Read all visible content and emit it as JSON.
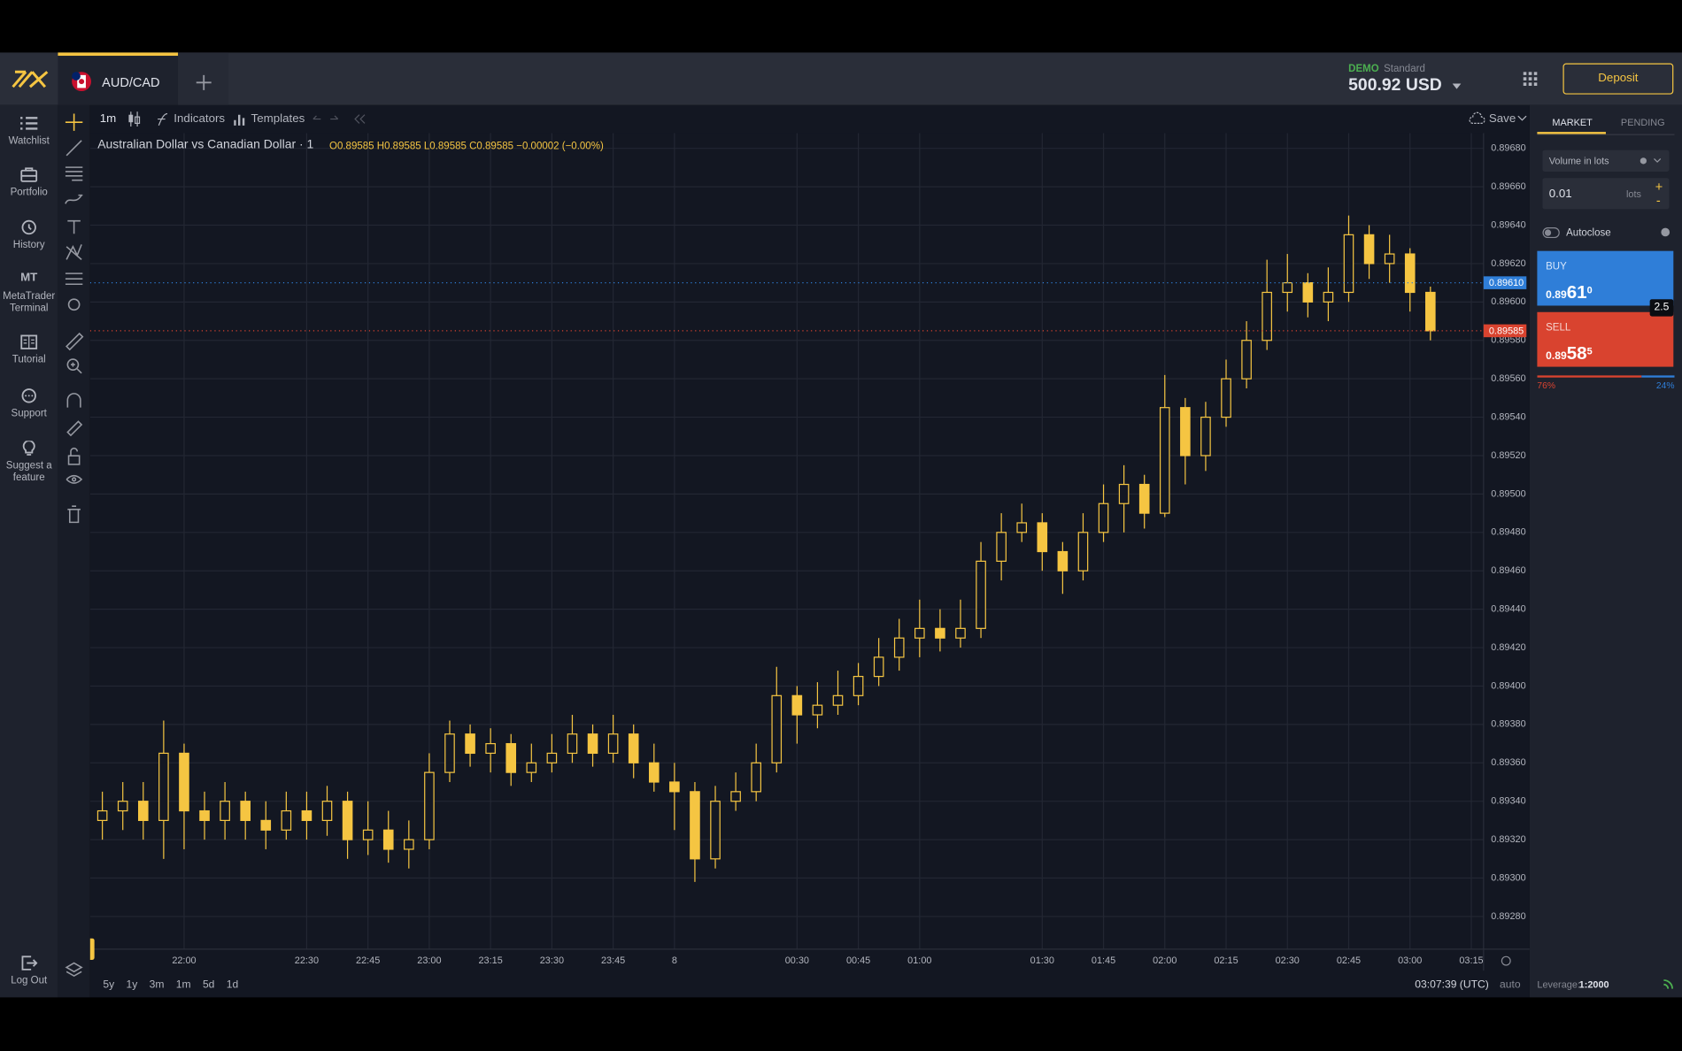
{
  "header": {
    "tab": "AUD/CAD",
    "account_mode": "DEMO",
    "account_type": "Standard",
    "balance": "500.92 USD",
    "deposit": "Deposit"
  },
  "sidebar": {
    "items": [
      "Watchlist",
      "Portfolio",
      "History",
      "MetaTrader Terminal",
      "Tutorial",
      "Support",
      "Suggest a feature"
    ],
    "mt_icon": "MT",
    "logout": "Log Out"
  },
  "toolbar": {
    "interval": "1m",
    "indicators": "Indicators",
    "templates": "Templates",
    "save": "Save"
  },
  "chart_data": {
    "type": "candlestick",
    "title": "Australian Dollar vs Canadian Dollar · 1",
    "legend_ohlc": "O0.89585 H0.89585 L0.89585 C0.89585 −0.00002 (−0.00%)",
    "color": "#f5c542",
    "grid": true,
    "x": [
      "21:40",
      "21:45",
      "21:50",
      "21:55",
      "22:00",
      "22:05",
      "22:10",
      "22:15",
      "22:20",
      "22:25",
      "22:30",
      "22:35",
      "22:40",
      "22:45",
      "22:50",
      "22:55",
      "23:00",
      "23:05",
      "23:10",
      "23:15",
      "23:20",
      "23:25",
      "23:30",
      "23:35",
      "23:40",
      "23:45",
      "23:50",
      "23:55",
      "00:00",
      "00:05",
      "00:10",
      "00:15",
      "00:20",
      "00:25",
      "00:30",
      "00:35",
      "00:40",
      "00:45",
      "00:50",
      "00:55",
      "01:00",
      "01:05",
      "01:10",
      "01:15",
      "01:20",
      "01:25",
      "01:30",
      "01:35",
      "01:40",
      "01:45",
      "01:50",
      "01:55",
      "02:00",
      "02:05",
      "02:10",
      "02:15",
      "02:20",
      "02:25",
      "02:30",
      "02:35",
      "02:40",
      "02:45",
      "02:50",
      "02:55",
      "03:00",
      "03:05"
    ],
    "open": [
      0.8933,
      0.89335,
      0.8934,
      0.8933,
      0.89365,
      0.89335,
      0.8933,
      0.8934,
      0.8933,
      0.89325,
      0.89335,
      0.8933,
      0.8934,
      0.8932,
      0.89325,
      0.89315,
      0.8932,
      0.89355,
      0.89375,
      0.89365,
      0.8937,
      0.89355,
      0.8936,
      0.89365,
      0.89375,
      0.89365,
      0.89375,
      0.8936,
      0.8935,
      0.89345,
      0.8931,
      0.8934,
      0.89345,
      0.8936,
      0.89395,
      0.89385,
      0.8939,
      0.89395,
      0.89405,
      0.89415,
      0.89425,
      0.8943,
      0.89425,
      0.8943,
      0.89465,
      0.8948,
      0.89485,
      0.8947,
      0.8946,
      0.8948,
      0.89495,
      0.89505,
      0.8949,
      0.89545,
      0.8952,
      0.8954,
      0.8956,
      0.8958,
      0.89605,
      0.8961,
      0.896,
      0.89605,
      0.89635,
      0.8962,
      0.89625,
      0.89605
    ],
    "high": [
      0.89345,
      0.8935,
      0.8935,
      0.89382,
      0.8937,
      0.89345,
      0.8935,
      0.89345,
      0.8934,
      0.89345,
      0.89345,
      0.89348,
      0.89345,
      0.8934,
      0.89335,
      0.8933,
      0.89365,
      0.89382,
      0.8938,
      0.89378,
      0.89375,
      0.8937,
      0.89375,
      0.89385,
      0.8938,
      0.89385,
      0.8938,
      0.8937,
      0.8936,
      0.8935,
      0.89348,
      0.89355,
      0.8937,
      0.8941,
      0.894,
      0.89402,
      0.89408,
      0.89412,
      0.89425,
      0.89435,
      0.89445,
      0.8944,
      0.89445,
      0.89475,
      0.8949,
      0.89495,
      0.8949,
      0.89475,
      0.8949,
      0.89505,
      0.89515,
      0.8951,
      0.89562,
      0.8955,
      0.89548,
      0.8957,
      0.8959,
      0.89622,
      0.89625,
      0.89615,
      0.89618,
      0.89645,
      0.8964,
      0.89635,
      0.89628,
      0.89608
    ],
    "low": [
      0.8932,
      0.89325,
      0.8932,
      0.8931,
      0.89315,
      0.8932,
      0.8932,
      0.8932,
      0.89315,
      0.8932,
      0.8932,
      0.89322,
      0.8931,
      0.89312,
      0.89308,
      0.89305,
      0.89315,
      0.8935,
      0.89358,
      0.89355,
      0.89348,
      0.8935,
      0.89355,
      0.8936,
      0.89358,
      0.8936,
      0.89352,
      0.89345,
      0.89325,
      0.89298,
      0.89305,
      0.89335,
      0.8934,
      0.89355,
      0.8937,
      0.89378,
      0.89385,
      0.8939,
      0.894,
      0.89408,
      0.89415,
      0.89418,
      0.8942,
      0.89425,
      0.89455,
      0.89475,
      0.8946,
      0.89448,
      0.89455,
      0.89475,
      0.8948,
      0.89482,
      0.89488,
      0.89505,
      0.89512,
      0.89535,
      0.89555,
      0.89575,
      0.89595,
      0.89592,
      0.8959,
      0.896,
      0.89612,
      0.8961,
      0.89595,
      0.8958
    ],
    "close": [
      0.89335,
      0.8934,
      0.8933,
      0.89365,
      0.89335,
      0.8933,
      0.8934,
      0.8933,
      0.89325,
      0.89335,
      0.8933,
      0.8934,
      0.8932,
      0.89325,
      0.89315,
      0.8932,
      0.89355,
      0.89375,
      0.89365,
      0.8937,
      0.89355,
      0.8936,
      0.89365,
      0.89375,
      0.89365,
      0.89375,
      0.8936,
      0.8935,
      0.89345,
      0.8931,
      0.8934,
      0.89345,
      0.8936,
      0.89395,
      0.89385,
      0.8939,
      0.89395,
      0.89405,
      0.89415,
      0.89425,
      0.8943,
      0.89425,
      0.8943,
      0.89465,
      0.8948,
      0.89485,
      0.8947,
      0.8946,
      0.8948,
      0.89495,
      0.89505,
      0.8949,
      0.89545,
      0.8952,
      0.8954,
      0.8956,
      0.8958,
      0.89605,
      0.8961,
      0.896,
      0.89605,
      0.89635,
      0.8962,
      0.89625,
      0.89605,
      0.89585
    ],
    "xlim": [
      "21:37",
      "03:18"
    ],
    "xticks": [
      "22:00",
      "22:30",
      "22:45",
      "23:00",
      "23:15",
      "23:30",
      "23:45",
      {
        "value": "00:00",
        "label": "8"
      },
      "00:30",
      "00:45",
      "01:00",
      "01:30",
      "01:45",
      "02:00",
      "02:15",
      "02:30",
      "02:45",
      "03:00",
      "03:15"
    ],
    "ylim": [
      0.89263,
      0.89688
    ],
    "yticks": [
      {
        "value": 0.8968,
        "label": "0.89680"
      },
      {
        "value": 0.8966,
        "label": "0.89660"
      },
      {
        "value": 0.8964,
        "label": "0.89640"
      },
      {
        "value": 0.8962,
        "label": "0.89620"
      },
      {
        "value": 0.896,
        "label": "0.89600"
      },
      {
        "value": 0.8958,
        "label": "0.89580"
      },
      {
        "value": 0.8956,
        "label": "0.89560"
      },
      {
        "value": 0.8954,
        "label": "0.89540"
      },
      {
        "value": 0.8952,
        "label": "0.89520"
      },
      {
        "value": 0.895,
        "label": "0.89500"
      },
      {
        "value": 0.8948,
        "label": "0.89480"
      },
      {
        "value": 0.8946,
        "label": "0.89460"
      },
      {
        "value": 0.8944,
        "label": "0.89440"
      },
      {
        "value": 0.8942,
        "label": "0.89420"
      },
      {
        "value": 0.894,
        "label": "0.89400"
      },
      {
        "value": 0.8938,
        "label": "0.89380"
      },
      {
        "value": 0.8936,
        "label": "0.89360"
      },
      {
        "value": 0.8934,
        "label": "0.89340"
      },
      {
        "value": 0.8932,
        "label": "0.89320"
      },
      {
        "value": 0.893,
        "label": "0.89300"
      },
      {
        "value": 0.8928,
        "label": "0.89280"
      }
    ],
    "price_lines": [
      {
        "value": 0.8961,
        "label": "0.89610",
        "color": "#2f7ed8"
      },
      {
        "value": 0.89585,
        "label": "0.89585",
        "color": "#d9432f"
      }
    ]
  },
  "range_buttons": [
    "5y",
    "1y",
    "3m",
    "1m",
    "5d",
    "1d"
  ],
  "status": {
    "clock": "03:07:39 (UTC)",
    "scale": "auto",
    "leverage_label": "Leverage:",
    "leverage": "1:2000"
  },
  "order_panel": {
    "tabs": [
      "MARKET",
      "PENDING"
    ],
    "volume_mode": "Volume in lots",
    "volume": "0.01",
    "volume_unit": "lots",
    "plus": "+",
    "minus": "-",
    "autoclose": "Autoclose",
    "buy": {
      "label": "BUY",
      "price_small": "0.89",
      "price_big": "61",
      "price_sup": "0"
    },
    "sell": {
      "label": "SELL",
      "price_small": "0.89",
      "price_big": "58",
      "price_sup": "5"
    },
    "spread": "2.5",
    "sentiment": {
      "values": [
        76,
        24
      ],
      "value_labels": [
        "76%",
        "24%"
      ],
      "colors": [
        "#d9432f",
        "#2f7ed8"
      ]
    }
  }
}
